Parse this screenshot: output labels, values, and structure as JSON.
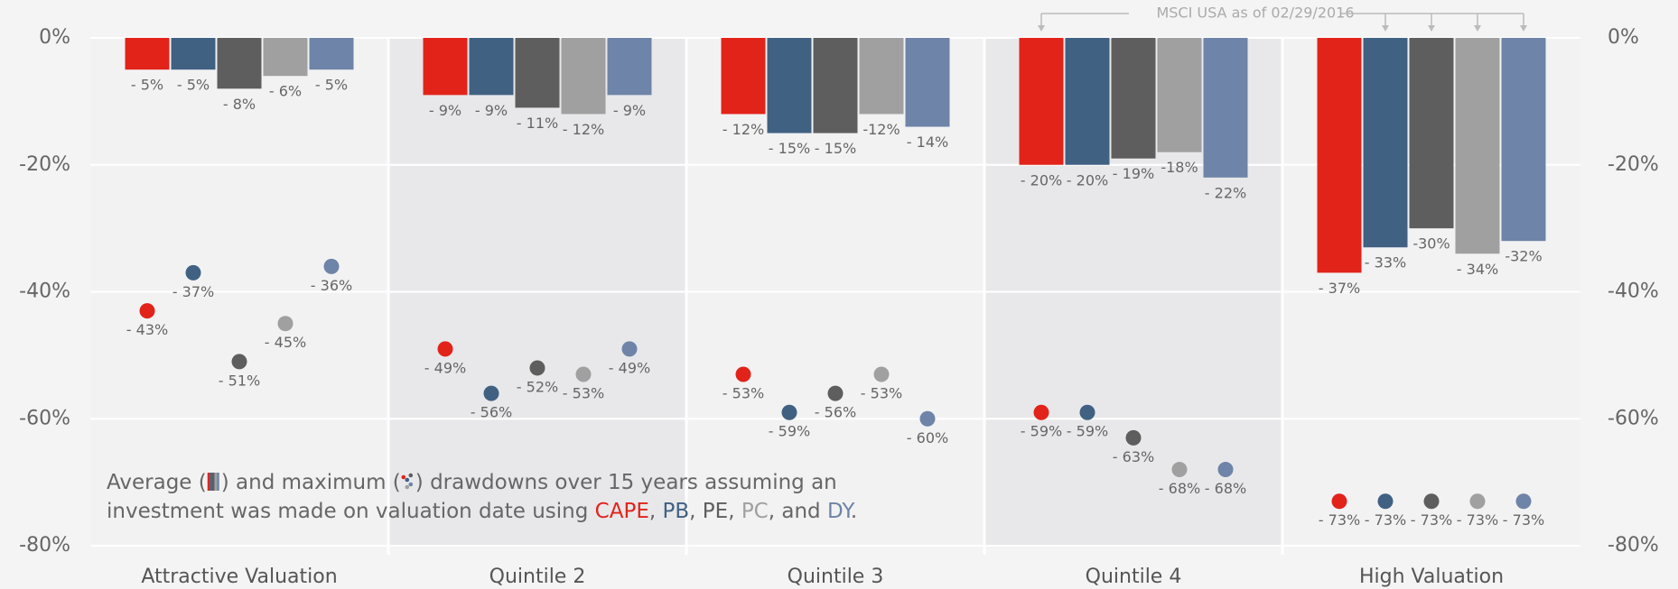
{
  "chart_data": {
    "type": "bar",
    "categories": [
      "Attractive Valuation",
      "Quintile 2",
      "Quintile 3",
      "Quintile 4",
      "High Valuation"
    ],
    "series": [
      {
        "name": "CAPE",
        "color": "#e2231a",
        "values": [
          -5,
          -9,
          -12,
          -20,
          -37
        ],
        "value_labels": [
          "- 5%",
          "- 9%",
          "- 12%",
          "- 20%",
          "- 37%"
        ],
        "max_values": [
          -43,
          -49,
          -53,
          -59,
          -73
        ],
        "max_value_labels": [
          "- 43%",
          "- 49%",
          "- 53%",
          "- 59%",
          "- 73%"
        ]
      },
      {
        "name": "PB",
        "color": "#406182",
        "values": [
          -5,
          -9,
          -15,
          -20,
          -33
        ],
        "value_labels": [
          "- 5%",
          "- 9%",
          "- 15%",
          "- 20%",
          "- 33%"
        ],
        "max_values": [
          -37,
          -56,
          -59,
          -59,
          -73
        ],
        "max_value_labels": [
          "- 37%",
          "- 56%",
          "- 59%",
          "- 59%",
          "- 73%"
        ]
      },
      {
        "name": "PE",
        "color": "#5e5e5e",
        "values": [
          -8,
          -11,
          -15,
          -19,
          -30
        ],
        "value_labels": [
          "- 8%",
          "- 11%",
          "- 15%",
          "- 19%",
          "-30%"
        ],
        "max_values": [
          -51,
          -52,
          -56,
          -63,
          -73
        ],
        "max_value_labels": [
          "- 51%",
          "- 52%",
          "- 56%",
          "- 63%",
          "- 73%"
        ]
      },
      {
        "name": "PC",
        "color": "#a0a0a0",
        "values": [
          -6,
          -12,
          -12,
          -18,
          -34
        ],
        "value_labels": [
          "- 6%",
          "- 12%",
          "-12%",
          "-18%",
          "- 34%"
        ],
        "max_values": [
          -45,
          -53,
          -53,
          -68,
          -73
        ],
        "max_value_labels": [
          "- 45%",
          "- 53%",
          "- 53%",
          "- 68%",
          "- 73%"
        ]
      },
      {
        "name": "DY",
        "color": "#6e84a8",
        "values": [
          -5,
          -9,
          -14,
          -22,
          -32
        ],
        "value_labels": [
          "- 5%",
          "- 9%",
          "- 14%",
          "- 22%",
          "-32%"
        ],
        "max_values": [
          -36,
          -49,
          -60,
          -68,
          -73
        ],
        "max_value_labels": [
          "- 36%",
          "- 49%",
          "- 60%",
          "- 68%",
          "- 73%"
        ]
      }
    ],
    "ylim": [
      -80,
      0
    ],
    "yticks": [
      {
        "value": 0,
        "label": "0%"
      },
      {
        "value": -20,
        "label": "-20%"
      },
      {
        "value": -40,
        "label": "-40%"
      },
      {
        "value": -60,
        "label": "-60%"
      },
      {
        "value": -80,
        "label": "-80%"
      }
    ],
    "grid": true,
    "annotation": "MSCI USA as of 02/29/2016",
    "caption": {
      "line1a": "Average (",
      "line1b": ") and maximum (",
      "line1c": ") drawdowns over 15 years assuming an",
      "line2": "investment was made on valuation date using ",
      "separators": [
        ", ",
        ", ",
        ", ",
        ", and ",
        "."
      ]
    }
  }
}
